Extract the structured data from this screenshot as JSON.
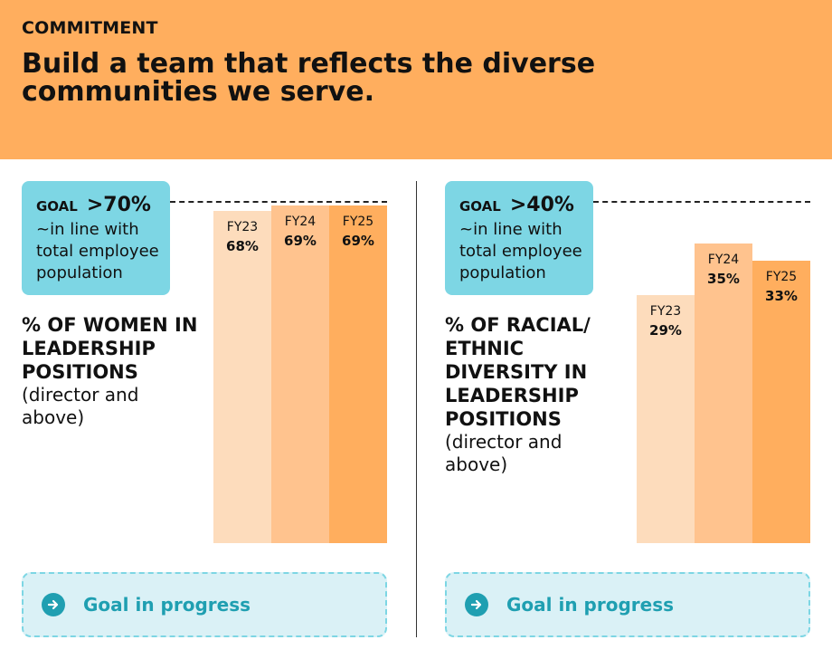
{
  "header": {
    "eyebrow": "COMMITMENT",
    "headline": "Build a team that reflects the diverse communities we serve."
  },
  "colors": {
    "header_bg": "#ffae5e",
    "goal_bg": "#7dd6e4",
    "accent": "#1f9fb1",
    "bar_fy23": "#fddcbc",
    "bar_fy24": "#ffc38e",
    "bar_fy25": "#ffae5e"
  },
  "panels": [
    {
      "goal_word": "GOAL",
      "goal_value": ">70%",
      "goal_desc": "~in line with total employee population",
      "metric_title": "% OF WOMEN IN LEADERSHIP POSITIONS",
      "metric_sub": "(director and above)",
      "progress_label": "Goal in progress",
      "progress_icon": "arrow-right-circle-icon"
    },
    {
      "goal_word": "GOAL",
      "goal_value": ">40%",
      "goal_desc": "~in line with total employee population",
      "metric_title": "% OF RACIAL/ ETHNIC DIVERSITY IN LEADERSHIP POSITIONS",
      "metric_sub": "(director and above)",
      "progress_label": "Goal in progress",
      "progress_icon": "arrow-right-circle-icon"
    }
  ],
  "chart_data": [
    {
      "type": "bar",
      "title": "% OF WOMEN IN LEADERSHIP POSITIONS",
      "categories": [
        "FY23",
        "FY24",
        "FY25"
      ],
      "values": [
        68,
        69,
        69
      ],
      "value_labels": [
        "68%",
        "69%",
        "69%"
      ],
      "goal": 70,
      "goal_label": ">70%",
      "ylim": [
        0,
        100
      ]
    },
    {
      "type": "bar",
      "title": "% OF RACIAL/ETHNIC DIVERSITY IN LEADERSHIP POSITIONS",
      "categories": [
        "FY23",
        "FY24",
        "FY25"
      ],
      "values": [
        29,
        35,
        33
      ],
      "value_labels": [
        "29%",
        "35%",
        "33%"
      ],
      "goal": 40,
      "goal_label": ">40%",
      "ylim": [
        0,
        100
      ]
    }
  ]
}
